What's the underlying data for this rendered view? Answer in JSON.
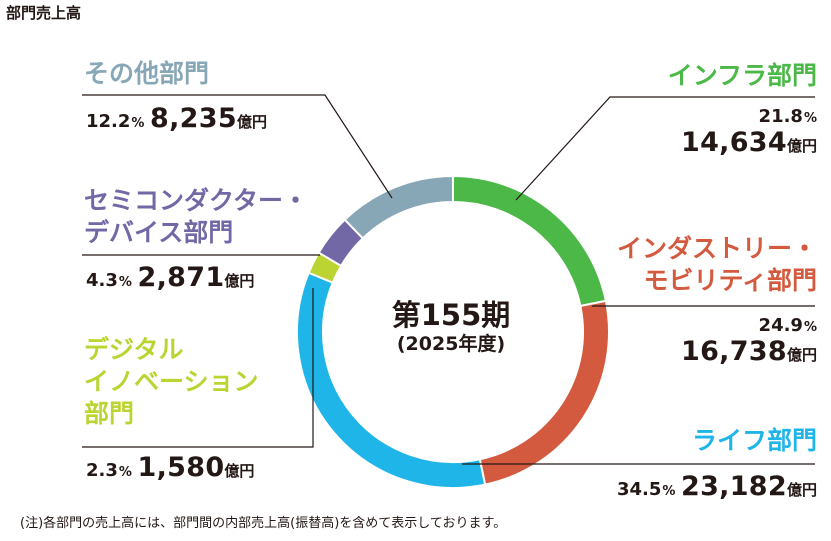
{
  "page_title": "部門売上高",
  "center": {
    "main": "第155期",
    "sub": "(2025年度)"
  },
  "footnote": "(注)各部門の売上高には、部門間の内部売上高(振替高)を含めて表示しております。",
  "units": {
    "percent": "%",
    "amount": "億円"
  },
  "chart_data": {
    "type": "pie",
    "variant": "donut",
    "center_label": [
      "第155期",
      "(2025年度)"
    ],
    "unit": "億円",
    "series": [
      {
        "name": "インフラ部門",
        "name_lines": [
          "インフラ部門"
        ],
        "percent": 21.8,
        "percent_text": "21.8",
        "value": 14634,
        "value_text": "14,634",
        "color": "#4cb848"
      },
      {
        "name": "インダストリー・モビリティ部門",
        "name_lines": [
          "インダストリー・",
          "モビリティ部門"
        ],
        "percent": 24.9,
        "percent_text": "24.9",
        "value": 16738,
        "value_text": "16,738",
        "color": "#d35a3f"
      },
      {
        "name": "ライフ部門",
        "name_lines": [
          "ライフ部門"
        ],
        "percent": 34.5,
        "percent_text": "34.5",
        "value": 23182,
        "value_text": "23,182",
        "color": "#1fb5e8"
      },
      {
        "name": "デジタルイノベーション部門",
        "name_lines": [
          "デジタル",
          "イノベーション",
          "部門"
        ],
        "percent": 2.3,
        "percent_text": "2.3",
        "value": 1580,
        "value_text": "1,580",
        "color": "#bcd432"
      },
      {
        "name": "セミコンダクター・デバイス部門",
        "name_lines": [
          "セミコンダクター・",
          "デバイス部門"
        ],
        "percent": 4.3,
        "percent_text": "4.3",
        "value": 2871,
        "value_text": "2,871",
        "color": "#7268a6"
      },
      {
        "name": "その他部門",
        "name_lines": [
          "その他部門"
        ],
        "percent": 12.2,
        "percent_text": "12.2",
        "value": 8235,
        "value_text": "8,235",
        "color": "#87a7b7"
      }
    ]
  }
}
